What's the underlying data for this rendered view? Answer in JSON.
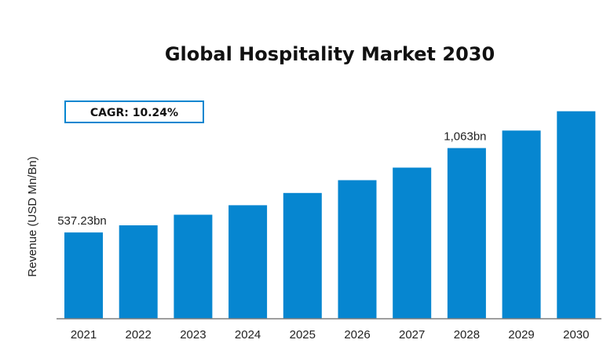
{
  "chart_data": {
    "type": "bar",
    "title": "Global Hospitality Market 2030",
    "ylabel": "Revenue (USD Mn/Bn)",
    "xlabel": "",
    "annotation": "CAGR: 10.24%",
    "categories": [
      "2021",
      "2022",
      "2023",
      "2024",
      "2025",
      "2026",
      "2027",
      "2028",
      "2029",
      "2030"
    ],
    "values": [
      537.23,
      582,
      648,
      707,
      783,
      863,
      941,
      1063,
      1172,
      1292
    ],
    "data_labels": [
      {
        "index": 0,
        "text": "537.23bn"
      },
      {
        "index": 7,
        "text": "1,063bn"
      }
    ],
    "ylim": [
      0,
      1320
    ],
    "grid": false,
    "colors": {
      "bar": "#0686d0",
      "axis": "#7f7f7f",
      "box_border": "#0686d0"
    }
  }
}
